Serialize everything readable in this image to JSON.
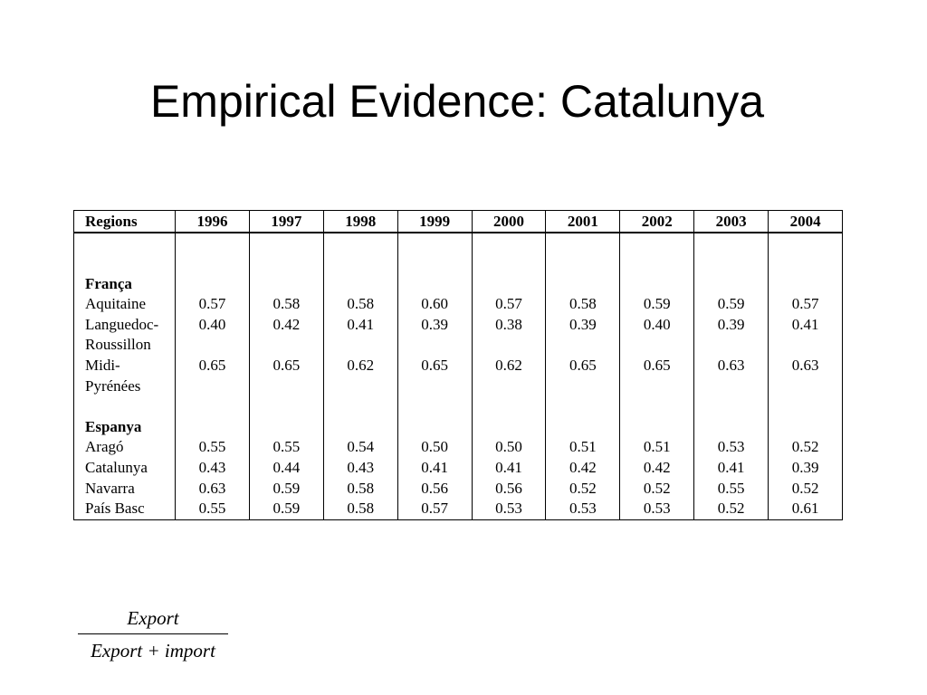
{
  "title": "Empirical Evidence: Catalunya",
  "table": {
    "header_region": "Regions",
    "years": [
      "1996",
      "1997",
      "1998",
      "1999",
      "2000",
      "2001",
      "2002",
      "2003",
      "2004"
    ],
    "lines": [
      {
        "type": "blank",
        "label": "",
        "values": []
      },
      {
        "type": "group",
        "label": "França",
        "values": []
      },
      {
        "type": "row",
        "label": "Aquitaine",
        "values": [
          "0.57",
          "0.58",
          "0.58",
          "0.60",
          "0.57",
          "0.58",
          "0.59",
          "0.59",
          "0.57"
        ]
      },
      {
        "type": "row",
        "label": "Languedoc-",
        "values": [
          "0.40",
          "0.42",
          "0.41",
          "0.39",
          "0.38",
          "0.39",
          "0.40",
          "0.39",
          "0.41"
        ]
      },
      {
        "type": "cont",
        "label": "Roussillon",
        "values": []
      },
      {
        "type": "row",
        "label": "Midi-",
        "values": [
          "0.65",
          "0.65",
          "0.62",
          "0.65",
          "0.62",
          "0.65",
          "0.65",
          "0.63",
          "0.63"
        ]
      },
      {
        "type": "cont",
        "label": "Pyrénées",
        "values": []
      },
      {
        "type": "blank",
        "label": "",
        "values": []
      },
      {
        "type": "group",
        "label": "Espanya",
        "values": []
      },
      {
        "type": "row",
        "label": "Aragó",
        "values": [
          "0.55",
          "0.55",
          "0.54",
          "0.50",
          "0.50",
          "0.51",
          "0.51",
          "0.53",
          "0.52"
        ]
      },
      {
        "type": "row",
        "label": "Catalunya",
        "values": [
          "0.43",
          "0.44",
          "0.43",
          "0.41",
          "0.41",
          "0.42",
          "0.42",
          "0.41",
          "0.39"
        ]
      },
      {
        "type": "row",
        "label": "Navarra",
        "values": [
          "0.63",
          "0.59",
          "0.58",
          "0.56",
          "0.56",
          "0.52",
          "0.52",
          "0.55",
          "0.52"
        ]
      },
      {
        "type": "row",
        "label": "País Basc",
        "values": [
          "0.55",
          "0.59",
          "0.58",
          "0.57",
          "0.53",
          "0.53",
          "0.53",
          "0.52",
          "0.61"
        ]
      }
    ]
  },
  "formula": {
    "numerator": "Export",
    "denominator": "Export + import"
  }
}
